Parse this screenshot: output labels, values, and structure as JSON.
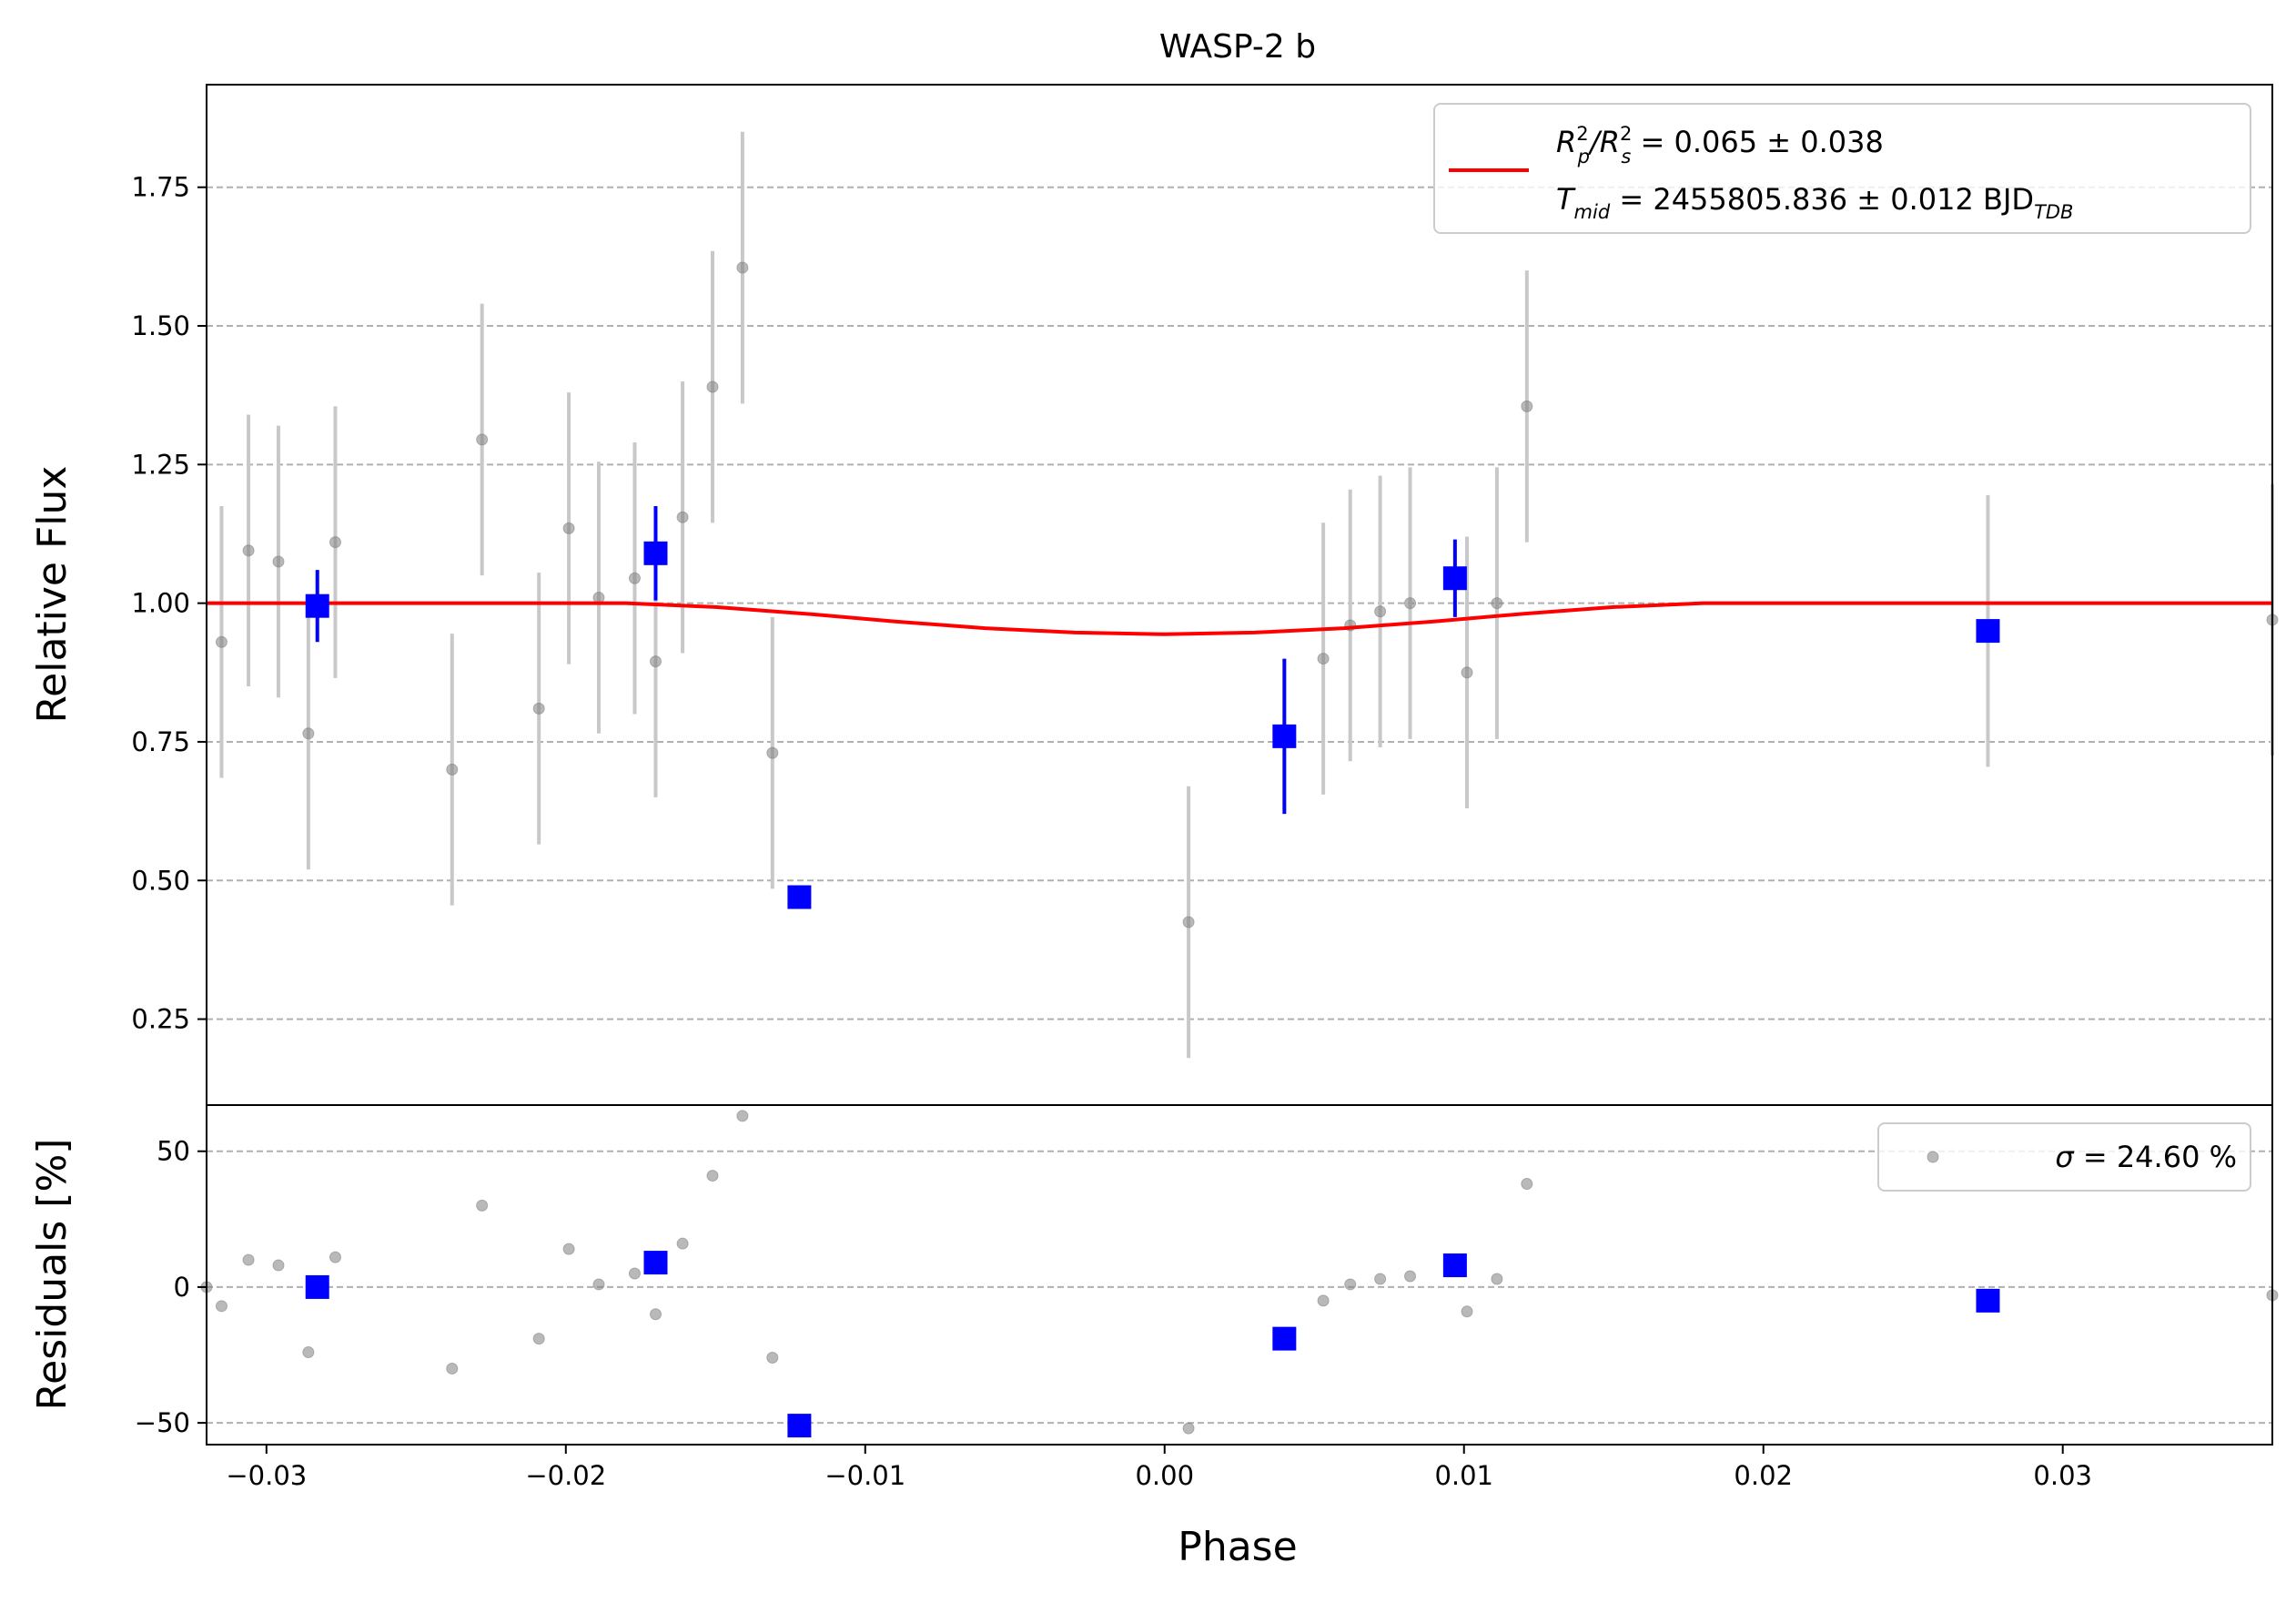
{
  "chart_data": {
    "type": "scatter",
    "title": "WASP-2 b",
    "xlabel": "Phase",
    "xlim": [
      -0.032,
      0.037
    ],
    "x_ticks": [
      -0.03,
      -0.02,
      -0.01,
      0.0,
      0.01,
      0.02,
      0.03
    ],
    "x_tick_labels": [
      "−0.03",
      "−0.02",
      "−0.01",
      "0.00",
      "0.01",
      "0.02",
      "0.03"
    ],
    "grid": "horizontal dashed",
    "colors": {
      "model": "#ff0000",
      "binned": "#0000ff",
      "raw": "#808080",
      "raw_err": "#c8c8c8"
    },
    "top_panel": {
      "ylabel": "Relative Flux",
      "ylim": [
        0.095,
        1.935
      ],
      "y_ticks": [
        0.25,
        0.5,
        0.75,
        1.0,
        1.25,
        1.5,
        1.75
      ],
      "y_tick_labels": [
        "0.25",
        "0.50",
        "0.75",
        "1.00",
        "1.25",
        "1.50",
        "1.75"
      ],
      "legend": {
        "placement": "upper right",
        "line1_main": "R",
        "line1_sup1": "2",
        "line1_sub1": "p",
        "line1_slash": "/R",
        "line1_sup2": "2",
        "line1_sub2": "s",
        "line1_rest": " = 0.065 ± 0.038",
        "line2_main": "T",
        "line2_sub": "mid",
        "line2_rest": " = 2455805.836 ± 0.012 BJD",
        "line2_sub2": "TDB"
      },
      "model": {
        "x": [
          -0.032,
          -0.018,
          -0.015,
          -0.012,
          -0.009,
          -0.006,
          -0.003,
          0.0,
          0.003,
          0.006,
          0.009,
          0.012,
          0.015,
          0.018,
          0.037
        ],
        "y": [
          1.0,
          1.0,
          0.993,
          0.981,
          0.967,
          0.955,
          0.947,
          0.944,
          0.947,
          0.955,
          0.967,
          0.981,
          0.993,
          1.0,
          1.0
        ]
      },
      "raw": {
        "x": [
          -0.0315,
          -0.0306,
          -0.0296,
          -0.0286,
          -0.0277,
          -0.0238,
          -0.0228,
          -0.0209,
          -0.0199,
          -0.0189,
          -0.0177,
          -0.017,
          -0.0161,
          -0.0151,
          -0.0141,
          -0.0131,
          0.0008,
          0.0053,
          0.0062,
          0.0072,
          0.0082,
          0.0101,
          0.0111,
          0.0121,
          0.0275,
          0.037
        ],
        "y": [
          0.93,
          1.095,
          1.075,
          0.765,
          1.11,
          0.7,
          1.295,
          0.81,
          1.135,
          1.01,
          1.045,
          0.895,
          1.155,
          1.39,
          1.605,
          0.73,
          0.425,
          0.9,
          0.96,
          0.985,
          1.0,
          0.875,
          1.0,
          1.355,
          0.95,
          0.97
        ],
        "err": [
          0.245,
          0.245,
          0.245,
          0.245,
          0.245,
          0.245,
          0.245,
          0.245,
          0.245,
          0.245,
          0.245,
          0.245,
          0.245,
          0.245,
          0.245,
          0.245,
          0.245,
          0.245,
          0.245,
          0.245,
          0.245,
          0.245,
          0.245,
          0.245,
          0.245,
          0.245
        ]
      },
      "binned": {
        "x": [
          -0.0283,
          -0.017,
          -0.0122,
          0.004,
          0.0097,
          0.0275
        ],
        "y": [
          0.995,
          1.09,
          0.47,
          0.76,
          1.045,
          0.95
        ],
        "err": [
          0.065,
          0.085,
          0.0,
          0.14,
          0.07,
          0.0
        ]
      }
    },
    "bottom_panel": {
      "ylabel": "Residuals [%]",
      "ylim": [
        -58,
        67
      ],
      "y_ticks": [
        -50,
        0,
        50
      ],
      "y_tick_labels": [
        "−50",
        "0",
        "50"
      ],
      "legend": {
        "placement": "upper right",
        "label_symbol": "σ",
        "label_rest": " = 24.60 %"
      },
      "raw": {
        "x": [
          -0.032,
          -0.0315,
          -0.0306,
          -0.0296,
          -0.0286,
          -0.0277,
          -0.0238,
          -0.0228,
          -0.0209,
          -0.0199,
          -0.0189,
          -0.0177,
          -0.017,
          -0.0161,
          -0.0151,
          -0.0141,
          -0.0131,
          0.0008,
          0.0053,
          0.0062,
          0.0072,
          0.0082,
          0.0101,
          0.0111,
          0.0121,
          0.037
        ],
        "y": [
          0,
          -7,
          10,
          8,
          -24,
          11,
          -30,
          30,
          -19,
          14,
          1,
          5,
          -10,
          16,
          41,
          63,
          -26,
          -52,
          -5,
          1,
          3,
          4,
          -9,
          3,
          38,
          -3
        ]
      },
      "binned": {
        "x": [
          -0.0283,
          -0.017,
          -0.0122,
          0.004,
          0.0097,
          0.0275
        ],
        "y": [
          0,
          9,
          -51,
          -19,
          8,
          -5
        ]
      }
    }
  }
}
